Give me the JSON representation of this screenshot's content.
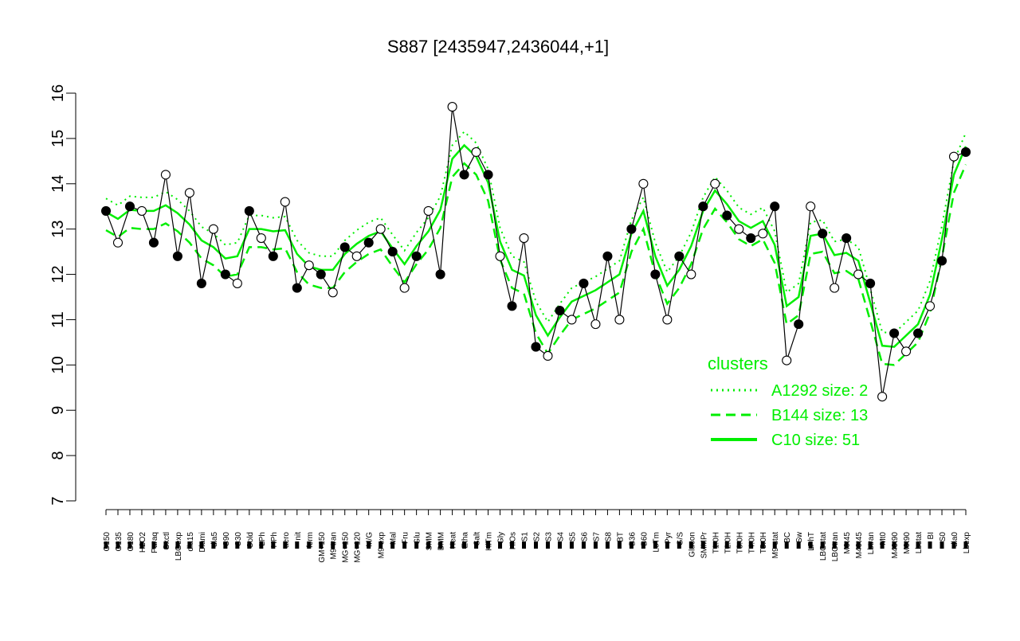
{
  "chart_data": {
    "type": "line",
    "title": "S887 [2435947,2436044,+1]",
    "xlabel": "",
    "ylabel": "",
    "ylim": [
      7,
      16
    ],
    "yticks": [
      7,
      8,
      9,
      10,
      11,
      12,
      13,
      14,
      15,
      16
    ],
    "grid": false,
    "tick_labels": [
      "G150",
      "G135",
      "G180",
      "H2O2",
      "Paraq",
      "Oxctl",
      "LBGexp",
      "dia15",
      "Diami",
      "dia5",
      "C90",
      "C30",
      "Cold",
      "LPh",
      "HPh",
      "aero",
      "nit",
      "ferm",
      "GM+150",
      "M9-tran",
      "MG+150",
      "MG+120",
      "M/G",
      "M9-exp",
      "Mal",
      "Fru",
      "Glu",
      "SMM",
      "BMM",
      "Heat",
      "Etha",
      "Salt",
      "HiTm",
      "Gly",
      "HiOs",
      "S1",
      "S2",
      "S3",
      "S4",
      "S5",
      "S6",
      "S7",
      "S8",
      "BT",
      "B36",
      "B60",
      "LoTm",
      "Pyr",
      "G/S",
      "Glucon",
      "SMMPr",
      "T1.0H",
      "T2.0H",
      "T3.0H",
      "T4.0H",
      "T5.0H",
      "M9-stat",
      "BC",
      "Sw",
      "LPhT",
      "LBGstat",
      "LBGtran",
      "M0t45",
      "M40t45",
      "Lbtran",
      "Mt0",
      "M40t90",
      "M0t90",
      "Lbstat",
      "BI",
      "S0",
      "dia0",
      "Lbexp"
    ],
    "values": [
      13.4,
      12.7,
      13.5,
      13.4,
      12.7,
      14.2,
      12.4,
      13.8,
      11.8,
      13.0,
      12.0,
      11.8,
      13.4,
      12.8,
      12.4,
      13.6,
      11.7,
      12.2,
      12.0,
      11.6,
      12.6,
      12.4,
      12.7,
      13.0,
      12.5,
      11.7,
      12.4,
      13.4,
      12.0,
      15.7,
      14.2,
      14.7,
      14.2,
      12.4,
      11.3,
      12.8,
      10.4,
      10.2,
      11.2,
      11.0,
      11.8,
      10.9,
      12.4,
      11.0,
      13.0,
      14.0,
      12.0,
      11.0,
      12.4,
      12.0,
      13.5,
      14.0,
      13.3,
      13.0,
      12.8,
      12.9,
      13.5,
      10.1,
      10.9,
      13.5,
      12.9,
      11.7,
      12.8,
      12.0,
      11.8,
      9.3,
      10.7,
      10.3,
      10.7,
      11.3,
      12.3,
      14.6,
      14.7
    ],
    "series": [
      {
        "name": "A1292 size: 2",
        "style": "dotted",
        "color": "#00ee00"
      },
      {
        "name": "B144 size: 13",
        "style": "dashed",
        "color": "#00ee00"
      },
      {
        "name": "C10 size: 51",
        "style": "solid",
        "color": "#00ee00"
      }
    ],
    "legend_title": "clusters",
    "legend_position": "right",
    "point_color": "#000000",
    "line_color": "#000000",
    "cluster_color": "#00ee00"
  }
}
